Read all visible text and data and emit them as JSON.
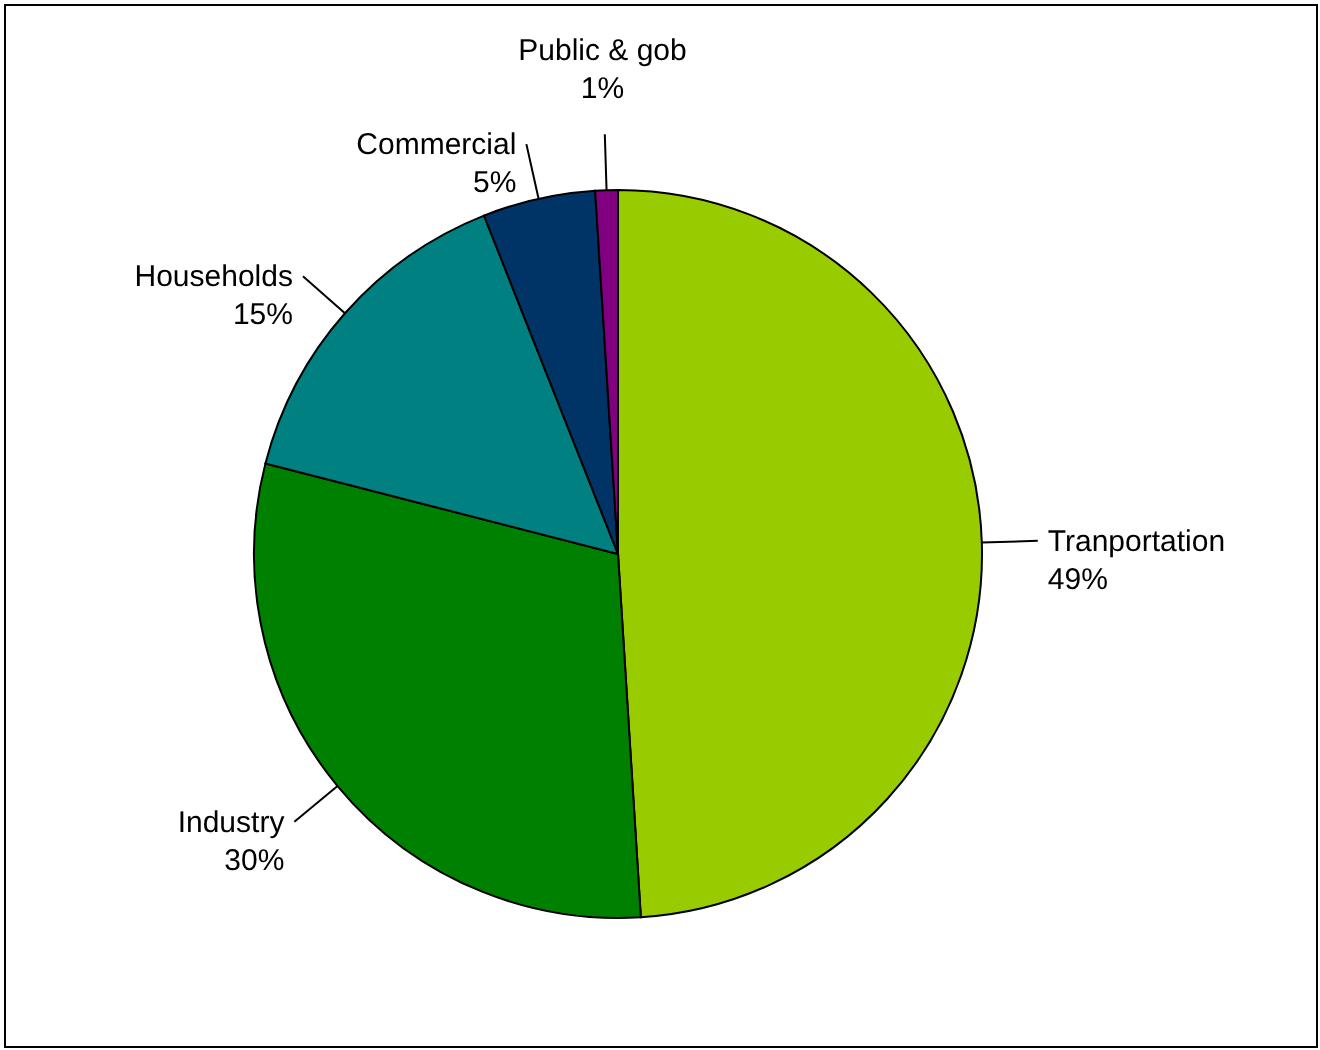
{
  "chart_data": {
    "type": "pie",
    "categories": [
      "Tranportation",
      "Industry",
      "Households",
      "Commercial",
      "Public & gob"
    ],
    "values": [
      49,
      30,
      15,
      5,
      1
    ],
    "colors": [
      "#99cc00",
      "#008000",
      "#008080",
      "#003366",
      "#800080"
    ],
    "value_labels": [
      "49%",
      "30%",
      "15%",
      "5%",
      "1%"
    ]
  }
}
